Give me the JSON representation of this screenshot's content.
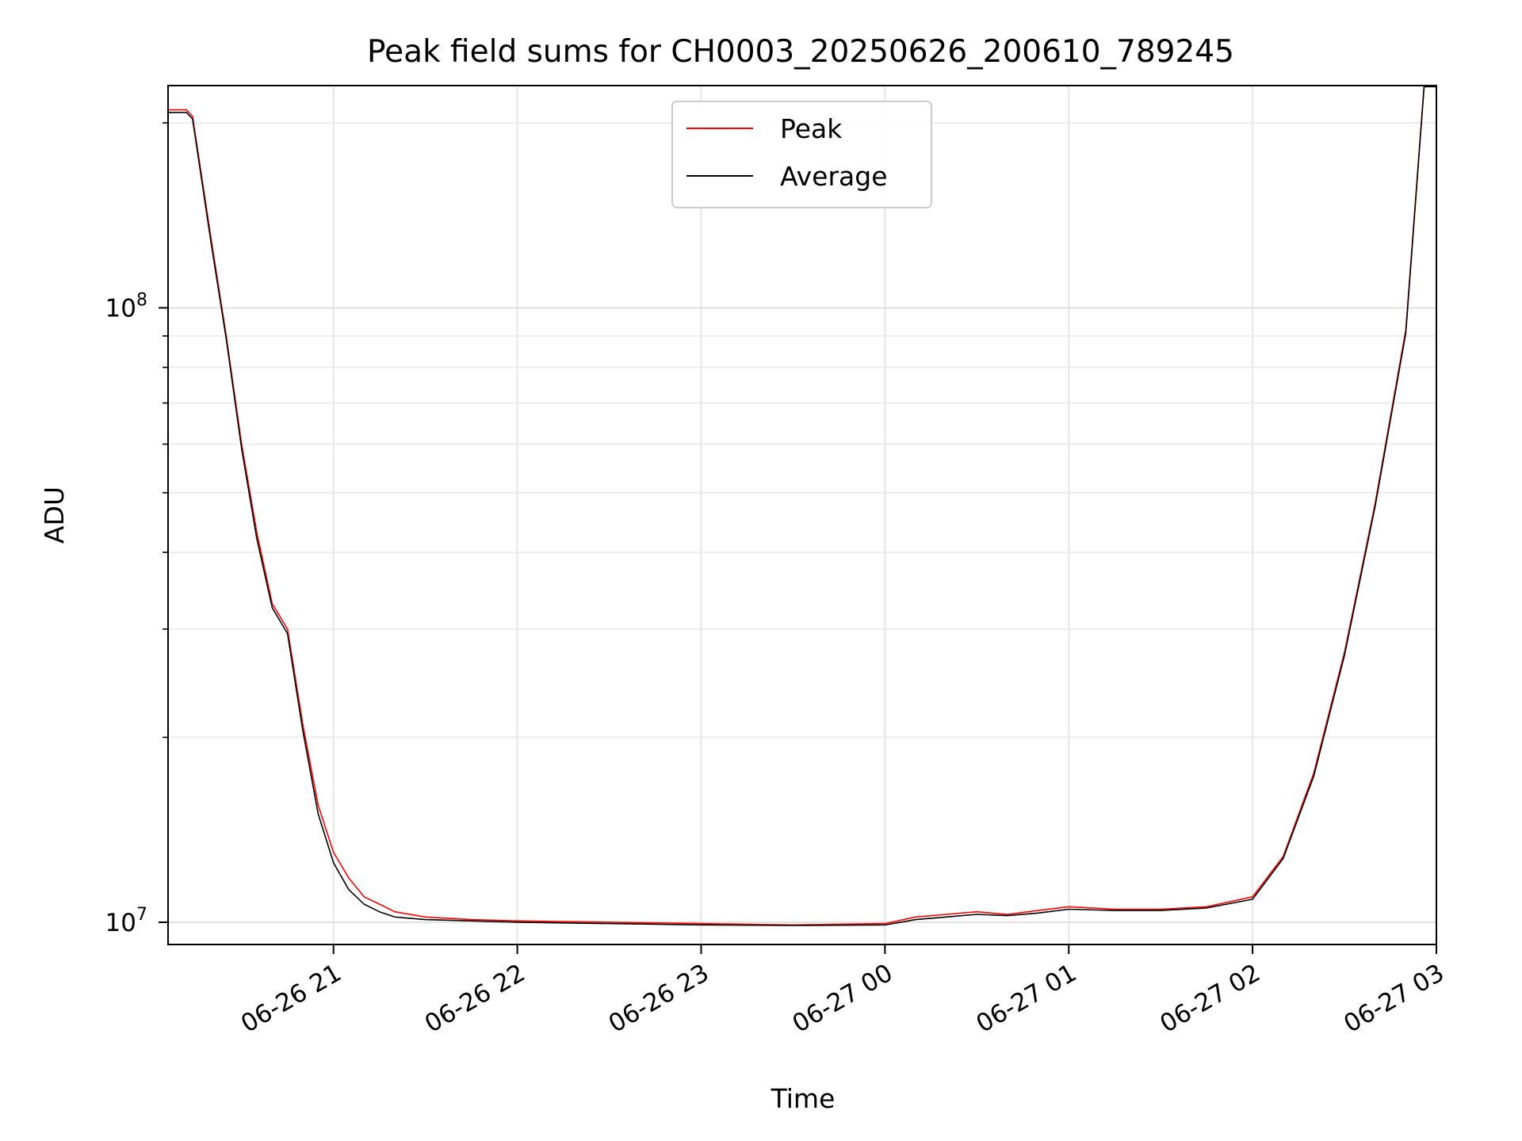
{
  "chart_data": {
    "type": "line",
    "title": "Peak field sums for CH0003_20250626_200610_789245",
    "xlabel": "Time",
    "ylabel": "ADU",
    "yscale": "log",
    "x_unit": "time",
    "xlim": [
      "06-26 20:06",
      "06-27 03:00"
    ],
    "ylim": [
      9200000,
      230000000
    ],
    "x_ticks": [
      "06-26 21",
      "06-26 22",
      "06-26 23",
      "06-27 00",
      "06-27 01",
      "06-27 02",
      "06-27 03"
    ],
    "y_major_ticks": [
      {
        "value": 10000000,
        "base": "10",
        "exp": "7"
      },
      {
        "value": 100000000,
        "base": "10",
        "exp": "8"
      }
    ],
    "y_minor_ticks": [
      20000000,
      30000000,
      40000000,
      50000000,
      60000000,
      70000000,
      80000000,
      90000000,
      200000000
    ],
    "grid": true,
    "legend": {
      "placement": "top-center"
    },
    "series": [
      {
        "name": "Peak",
        "color": "#ff0000",
        "x": [
          "06-26 20:06",
          "06-26 20:12",
          "06-26 20:14",
          "06-26 20:20",
          "06-26 20:25",
          "06-26 20:30",
          "06-26 20:35",
          "06-26 20:40",
          "06-26 20:45",
          "06-26 20:50",
          "06-26 20:55",
          "06-26 21:00",
          "06-26 21:05",
          "06-26 21:10",
          "06-26 21:15",
          "06-26 21:20",
          "06-26 21:30",
          "06-26 21:45",
          "06-26 22:00",
          "06-26 22:30",
          "06-26 23:00",
          "06-26 23:30",
          "06-27 00:00",
          "06-27 00:10",
          "06-27 00:20",
          "06-27 00:30",
          "06-27 00:40",
          "06-27 00:50",
          "06-27 01:00",
          "06-27 01:15",
          "06-27 01:30",
          "06-27 01:45",
          "06-27 02:00",
          "06-27 02:10",
          "06-27 02:20",
          "06-27 02:30",
          "06-27 02:40",
          "06-27 02:50",
          "06-27 02:56",
          "06-27 03:00"
        ],
        "y": [
          210000000,
          210000000,
          205000000,
          130000000,
          90000000,
          60000000,
          43000000,
          33000000,
          30000000,
          21000000,
          15500000,
          13000000,
          11800000,
          11000000,
          10700000,
          10400000,
          10200000,
          10100000,
          10050000,
          10000000,
          9950000,
          9900000,
          9950000,
          10200000,
          10300000,
          10400000,
          10300000,
          10450000,
          10600000,
          10500000,
          10500000,
          10600000,
          11000000,
          12800000,
          17500000,
          27500000,
          48000000,
          92000000,
          230000000,
          230000000
        ]
      },
      {
        "name": "Average",
        "color": "#000000",
        "x": [
          "06-26 20:06",
          "06-26 20:12",
          "06-26 20:14",
          "06-26 20:20",
          "06-26 20:25",
          "06-26 20:30",
          "06-26 20:35",
          "06-26 20:40",
          "06-26 20:45",
          "06-26 20:50",
          "06-26 20:55",
          "06-26 21:00",
          "06-26 21:05",
          "06-26 21:10",
          "06-26 21:15",
          "06-26 21:20",
          "06-26 21:30",
          "06-26 21:45",
          "06-26 22:00",
          "06-26 22:30",
          "06-26 23:00",
          "06-26 23:30",
          "06-27 00:00",
          "06-27 00:10",
          "06-27 00:20",
          "06-27 00:30",
          "06-27 00:40",
          "06-27 00:50",
          "06-27 01:00",
          "06-27 01:15",
          "06-27 01:30",
          "06-27 01:45",
          "06-27 02:00",
          "06-27 02:10",
          "06-27 02:20",
          "06-27 02:30",
          "06-27 02:40",
          "06-27 02:50",
          "06-27 02:56",
          "06-27 03:00"
        ],
        "y": [
          208000000,
          208000000,
          203000000,
          128000000,
          89000000,
          59000000,
          42000000,
          32500000,
          29500000,
          20500000,
          15000000,
          12500000,
          11300000,
          10700000,
          10400000,
          10200000,
          10100000,
          10050000,
          10000000,
          9950000,
          9900000,
          9880000,
          9900000,
          10100000,
          10200000,
          10300000,
          10250000,
          10350000,
          10500000,
          10450000,
          10450000,
          10550000,
          10900000,
          12700000,
          17300000,
          27200000,
          47500000,
          91000000,
          229000000,
          229000000
        ]
      }
    ]
  }
}
